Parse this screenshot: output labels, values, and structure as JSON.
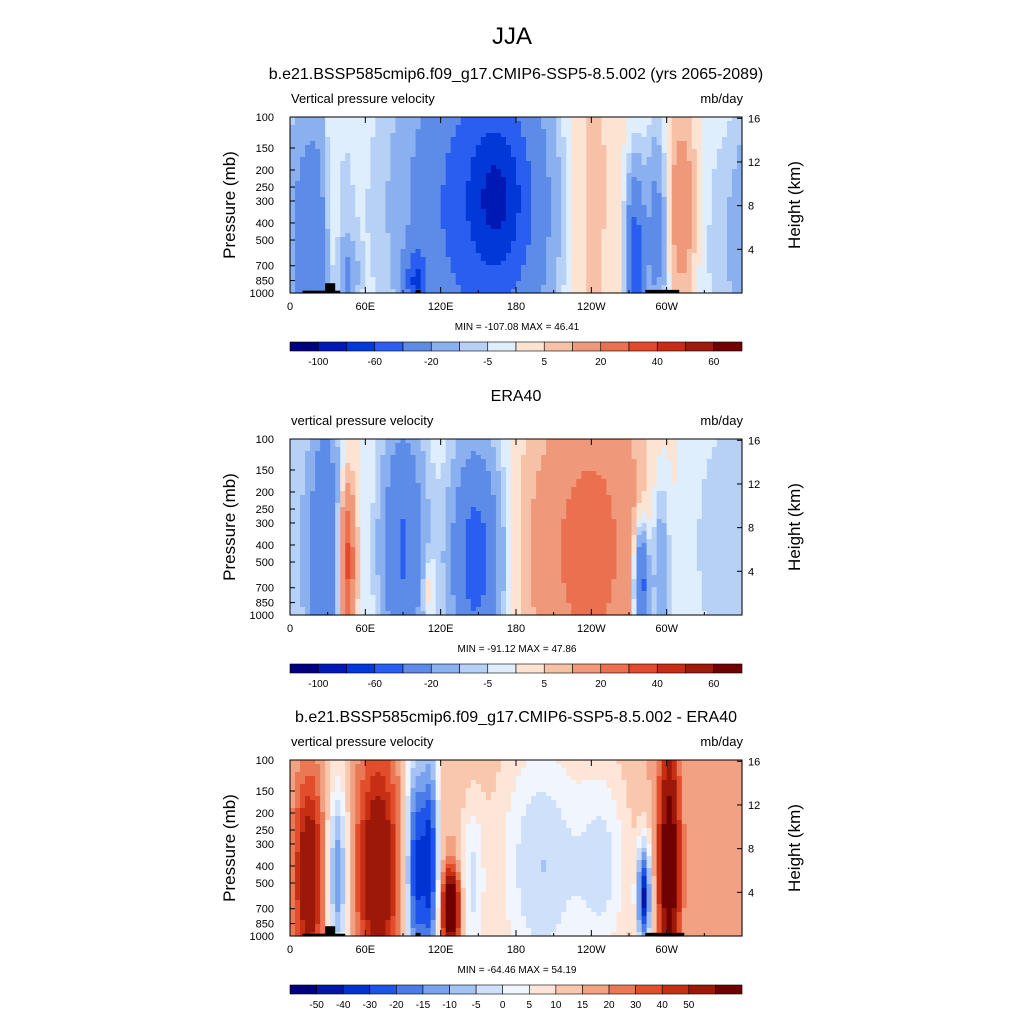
{
  "figure": {
    "title": "JJA"
  },
  "colorbars": {
    "main": {
      "colors": [
        "#00007f",
        "#0019b4",
        "#0039d8",
        "#2a5ef0",
        "#5d8be8",
        "#8ab0ef",
        "#b7d0f5",
        "#dfeefd",
        "#fde3d2",
        "#f7c1a7",
        "#f0997a",
        "#ea7050",
        "#e24a2d",
        "#c52e14",
        "#9e1b0c",
        "#710000"
      ],
      "labels": [
        "-100",
        "-60",
        "-20",
        "-5",
        "5",
        "20",
        "40",
        "60"
      ]
    },
    "diff": {
      "colors": [
        "#00007f",
        "#0016ad",
        "#0033d1",
        "#1f54ea",
        "#4a7ce8",
        "#78a2ed",
        "#a4c2f3",
        "#cfe1fa",
        "#f0f5fe",
        "#fde6d8",
        "#f9c7ae",
        "#f2a182",
        "#eb7855",
        "#e24d2c",
        "#c72e13",
        "#9c190a",
        "#6e0000"
      ],
      "labels": [
        "-50",
        "-40",
        "-30",
        "-20",
        "-15",
        "-10",
        "-5",
        "0",
        "5",
        "10",
        "15",
        "20",
        "30",
        "40",
        "50"
      ]
    }
  },
  "chart_data": [
    {
      "type": "heatmap",
      "title": "b.e21.BSSP585cmip6.f09_g17.CMIP6-SSP5-8.5.002 (yrs 2065-2089)",
      "left_label": "Vertical pressure velocity",
      "right_label": "mb/day",
      "ylabel": "Pressure (mb)",
      "ylabel_right": "Height (km)",
      "xticks": [
        "0",
        "60E",
        "120E",
        "180",
        "120W",
        "60W"
      ],
      "xtick_values": [
        0,
        60,
        120,
        180,
        240,
        300
      ],
      "xlim": [
        0,
        360
      ],
      "yticks": [
        "100",
        "150",
        "200",
        "250",
        "300",
        "400",
        "500",
        "700",
        "850",
        "1000"
      ],
      "ytick_values": [
        100,
        150,
        200,
        250,
        300,
        400,
        500,
        700,
        850,
        1000
      ],
      "ylim": [
        100,
        1000
      ],
      "yticks_right": [
        "16",
        "12",
        "8",
        "4"
      ],
      "ytick_right_values": [
        16,
        12,
        8,
        4
      ],
      "stats": "MIN = -107.08  MAX =  46.41",
      "min": -107.08,
      "max": 46.41,
      "colorbar": "main",
      "topography": [
        [
          10,
          40,
          970
        ],
        [
          28,
          36,
          880
        ],
        [
          100,
          104,
          960
        ],
        [
          283,
          310,
          960
        ]
      ],
      "features": [
        {
          "lon": 20,
          "p": 520,
          "sl": 14,
          "sp": 700,
          "v": -30
        },
        {
          "lon": 33,
          "p": 360,
          "sl": 5,
          "sp": 400,
          "v": 18
        },
        {
          "lon": 47,
          "p": 800,
          "sl": 5,
          "sp": 250,
          "v": -18
        },
        {
          "lon": 100,
          "p": 850,
          "sl": 6,
          "sp": 250,
          "v": -45
        },
        {
          "lon": 155,
          "p": 320,
          "sl": 42,
          "sp": 500,
          "v": -55
        },
        {
          "lon": 165,
          "p": 280,
          "sl": 14,
          "sp": 180,
          "v": -35
        },
        {
          "lon": 232,
          "p": 300,
          "sl": 20,
          "sp": 600,
          "v": 14
        },
        {
          "lon": 275,
          "p": 650,
          "sl": 5,
          "sp": 500,
          "v": -55
        },
        {
          "lon": 292,
          "p": 450,
          "sl": 6,
          "sp": 400,
          "v": -28
        },
        {
          "lon": 312,
          "p": 330,
          "sl": 9,
          "sp": 300,
          "v": 18
        },
        {
          "lon": 350,
          "p": 500,
          "sl": 20,
          "sp": 600,
          "v": -8
        }
      ]
    },
    {
      "type": "heatmap",
      "title": "ERA40",
      "left_label": "vertical pressure velocity",
      "right_label": "mb/day",
      "ylabel": "Pressure (mb)",
      "ylabel_right": "Height (km)",
      "xticks": [
        "0",
        "60E",
        "120E",
        "180",
        "120W",
        "60W"
      ],
      "xtick_values": [
        0,
        60,
        120,
        180,
        240,
        300
      ],
      "xlim": [
        0,
        360
      ],
      "yticks": [
        "100",
        "150",
        "200",
        "250",
        "300",
        "400",
        "500",
        "700",
        "850",
        "1000"
      ],
      "ytick_values": [
        100,
        150,
        200,
        250,
        300,
        400,
        500,
        700,
        850,
        1000
      ],
      "ylim": [
        100,
        1000
      ],
      "yticks_right": [
        "16",
        "12",
        "8",
        "4"
      ],
      "ytick_right_values": [
        16,
        12,
        8,
        4
      ],
      "stats": "MIN = -91.12  MAX =  47.86",
      "min": -91.12,
      "max": 47.86,
      "colorbar": "main",
      "topography": [],
      "features": [
        {
          "lon": 28,
          "p": 500,
          "sl": 9,
          "sp": 700,
          "v": -38
        },
        {
          "lon": 45,
          "p": 500,
          "sl": 5,
          "sp": 380,
          "v": 38
        },
        {
          "lon": 90,
          "p": 420,
          "sl": 12,
          "sp": 500,
          "v": -42
        },
        {
          "lon": 110,
          "p": 700,
          "sl": 4,
          "sp": 200,
          "v": 12
        },
        {
          "lon": 148,
          "p": 480,
          "sl": 14,
          "sp": 500,
          "v": -50
        },
        {
          "lon": 205,
          "p": 450,
          "sl": 25,
          "sp": 600,
          "v": 8
        },
        {
          "lon": 245,
          "p": 420,
          "sl": 28,
          "sp": 700,
          "v": 22
        },
        {
          "lon": 280,
          "p": 680,
          "sl": 4,
          "sp": 350,
          "v": -55
        },
        {
          "lon": 295,
          "p": 600,
          "sl": 5,
          "sp": 500,
          "v": -22
        },
        {
          "lon": 350,
          "p": 400,
          "sl": 22,
          "sp": 500,
          "v": -10
        }
      ]
    },
    {
      "type": "heatmap",
      "title": "b.e21.BSSP585cmip6.f09_g17.CMIP6-SSP5-8.5.002 - ERA40",
      "left_label": "vertical pressure velocity",
      "right_label": "mb/day",
      "ylabel": "Pressure (mb)",
      "ylabel_right": "Height (km)",
      "xticks": [
        "0",
        "60E",
        "120E",
        "180",
        "120W",
        "60W"
      ],
      "xtick_values": [
        0,
        60,
        120,
        180,
        240,
        300
      ],
      "xlim": [
        0,
        360
      ],
      "yticks": [
        "100",
        "150",
        "200",
        "250",
        "300",
        "400",
        "500",
        "700",
        "850",
        "1000"
      ],
      "ytick_values": [
        100,
        150,
        200,
        250,
        300,
        400,
        500,
        700,
        850,
        1000
      ],
      "ylim": [
        100,
        1000
      ],
      "yticks_right": [
        "16",
        "12",
        "8",
        "4"
      ],
      "ytick_right_values": [
        16,
        12,
        8,
        4
      ],
      "stats": "MIN = -64.46  MAX =  54.19",
      "min": -64.46,
      "max": 54.19,
      "colorbar": "diff",
      "topography": [
        [
          10,
          44,
          970
        ],
        [
          28,
          36,
          880
        ],
        [
          100,
          104,
          960
        ],
        [
          283,
          314,
          960
        ]
      ],
      "features": [
        {
          "lon": 15,
          "p": 450,
          "sl": 8,
          "sp": 400,
          "v": 30
        },
        {
          "lon": 38,
          "p": 450,
          "sl": 6,
          "sp": 400,
          "v": -30
        },
        {
          "lon": 70,
          "p": 420,
          "sl": 12,
          "sp": 450,
          "v": 30
        },
        {
          "lon": 100,
          "p": 420,
          "sl": 6,
          "sp": 500,
          "v": -40
        },
        {
          "lon": 112,
          "p": 380,
          "sl": 5,
          "sp": 450,
          "v": -38
        },
        {
          "lon": 128,
          "p": 700,
          "sl": 5,
          "sp": 250,
          "v": 50
        },
        {
          "lon": 145,
          "p": 500,
          "sl": 7,
          "sp": 400,
          "v": -15
        },
        {
          "lon": 200,
          "p": 400,
          "sl": 25,
          "sp": 500,
          "v": -20
        },
        {
          "lon": 250,
          "p": 400,
          "sl": 15,
          "sp": 400,
          "v": -15
        },
        {
          "lon": 282,
          "p": 600,
          "sl": 4,
          "sp": 300,
          "v": -45
        },
        {
          "lon": 302,
          "p": 400,
          "sl": 6,
          "sp": 450,
          "v": 42
        }
      ]
    }
  ]
}
